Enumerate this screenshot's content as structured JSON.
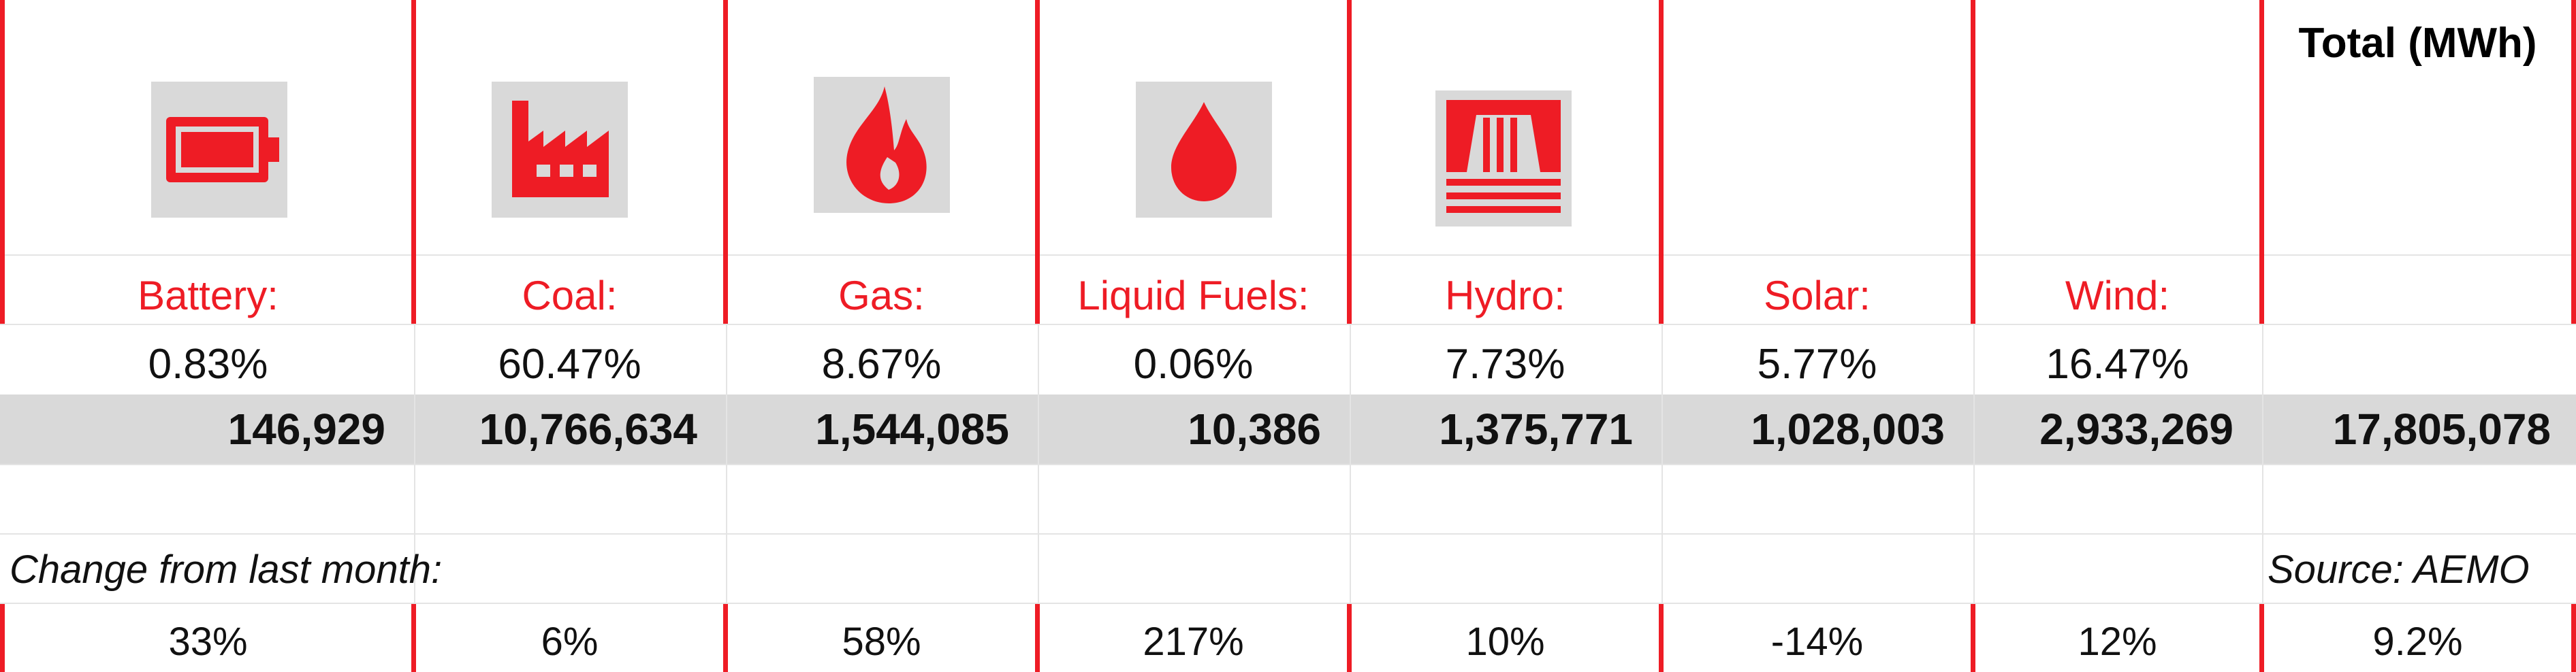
{
  "header": {
    "total_title": "Total (MWh)"
  },
  "sources": [
    {
      "label": "Battery:",
      "share": "0.83%",
      "mwh": "146,929",
      "change": "33%",
      "icon": "battery-icon"
    },
    {
      "label": "Coal:",
      "share": "60.47%",
      "mwh": "10,766,634",
      "change": "6%",
      "icon": "factory-icon"
    },
    {
      "label": "Gas:",
      "share": "8.67%",
      "mwh": "1,544,085",
      "change": "58%",
      "icon": "flame-icon"
    },
    {
      "label": "Liquid Fuels:",
      "share": "0.06%",
      "mwh": "10,386",
      "change": "217%",
      "icon": "droplet-icon"
    },
    {
      "label": "Hydro:",
      "share": "7.73%",
      "mwh": "1,375,771",
      "change": "10%",
      "icon": "dam-icon"
    },
    {
      "label": "Solar:",
      "share": "5.77%",
      "mwh": "1,028,003",
      "change": "-14%",
      "icon": null
    },
    {
      "label": "Wind:",
      "share": "16.47%",
      "mwh": "2,933,269",
      "change": "12%",
      "icon": null
    }
  ],
  "total": {
    "mwh": "17,805,078",
    "change": "9.2%"
  },
  "footer": {
    "change_label": "Change from last month:",
    "source_label": "Source: AEMO"
  },
  "colors": {
    "accent_red": "#ee1c25",
    "band_gray": "#d9d9d9"
  }
}
